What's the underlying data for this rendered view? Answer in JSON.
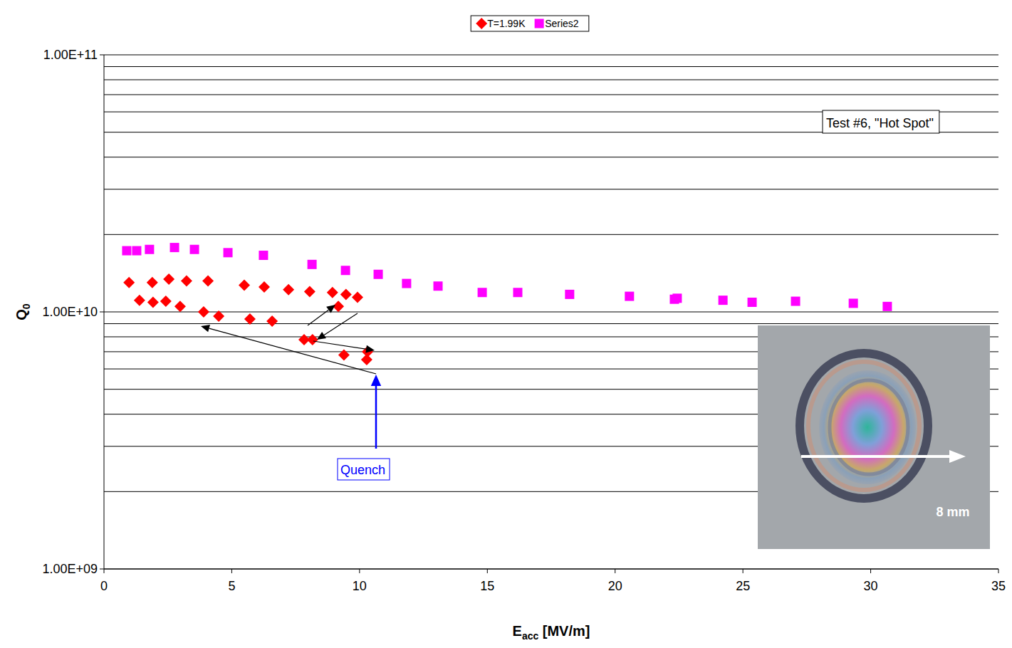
{
  "chart_data": {
    "type": "scatter",
    "x_label": "Eacc [MV/m]",
    "y_label": "Q0",
    "log": "y",
    "grid": true,
    "legend": "top",
    "xlim": [
      0,
      35
    ],
    "xticks": [
      0,
      5,
      10,
      15,
      20,
      25,
      30,
      35
    ],
    "ylim": [
      1000000000,
      100000000000
    ],
    "yticks": [
      {
        "value": 1000000000,
        "label": "1.00E+09"
      },
      {
        "value": 10000000000,
        "label": "1.00E+10"
      },
      {
        "value": 100000000000,
        "label": "1.00E+11"
      }
    ],
    "annotations": [
      "Test #6, \"Hot Spot\"",
      "Quench",
      "8 mm"
    ],
    "series": [
      {
        "name": "T=1.99K",
        "color": "#ff0000",
        "marker": "diamond",
        "x": [
          0.98,
          1.39,
          1.89,
          1.92,
          2.42,
          2.54,
          2.98,
          3.23,
          3.9,
          4.07,
          4.49,
          5.49,
          5.71,
          6.27,
          6.58,
          7.22,
          7.83,
          8.05,
          8.16,
          8.94,
          9.17,
          9.39,
          9.47,
          9.92,
          10.28,
          10.31
        ],
        "values": [
          13000000000,
          11100000000,
          13000000000,
          10900000000,
          11000000000,
          13400000000,
          10500000000,
          13200000000,
          10000000000,
          13200000000,
          9630000000,
          12700000000,
          9380000000,
          12500000000,
          9200000000,
          12200000000,
          7800000000,
          12000000000,
          7800000000,
          11900000000,
          10500000000,
          6800000000,
          11700000000,
          11400000000,
          6520000000,
          7000000000
        ]
      },
      {
        "name": "Series2",
        "color": "#ff00ff",
        "marker": "square",
        "x": [
          0.89,
          1.28,
          1.78,
          2.76,
          3.54,
          4.85,
          6.24,
          8.14,
          9.45,
          10.73,
          11.84,
          13.07,
          14.8,
          16.19,
          18.22,
          20.56,
          22.32,
          22.43,
          24.22,
          25.36,
          27.06,
          29.32,
          30.65
        ],
        "values": [
          17300000000,
          17300000000,
          17500000000,
          17800000000,
          17500000000,
          17000000000,
          16600000000,
          15300000000,
          14500000000,
          14000000000,
          12900000000,
          12600000000,
          11900000000,
          11900000000,
          11700000000,
          11500000000,
          11200000000,
          11300000000,
          11100000000,
          10900000000,
          11000000000,
          10800000000,
          10500000000
        ]
      }
    ]
  }
}
